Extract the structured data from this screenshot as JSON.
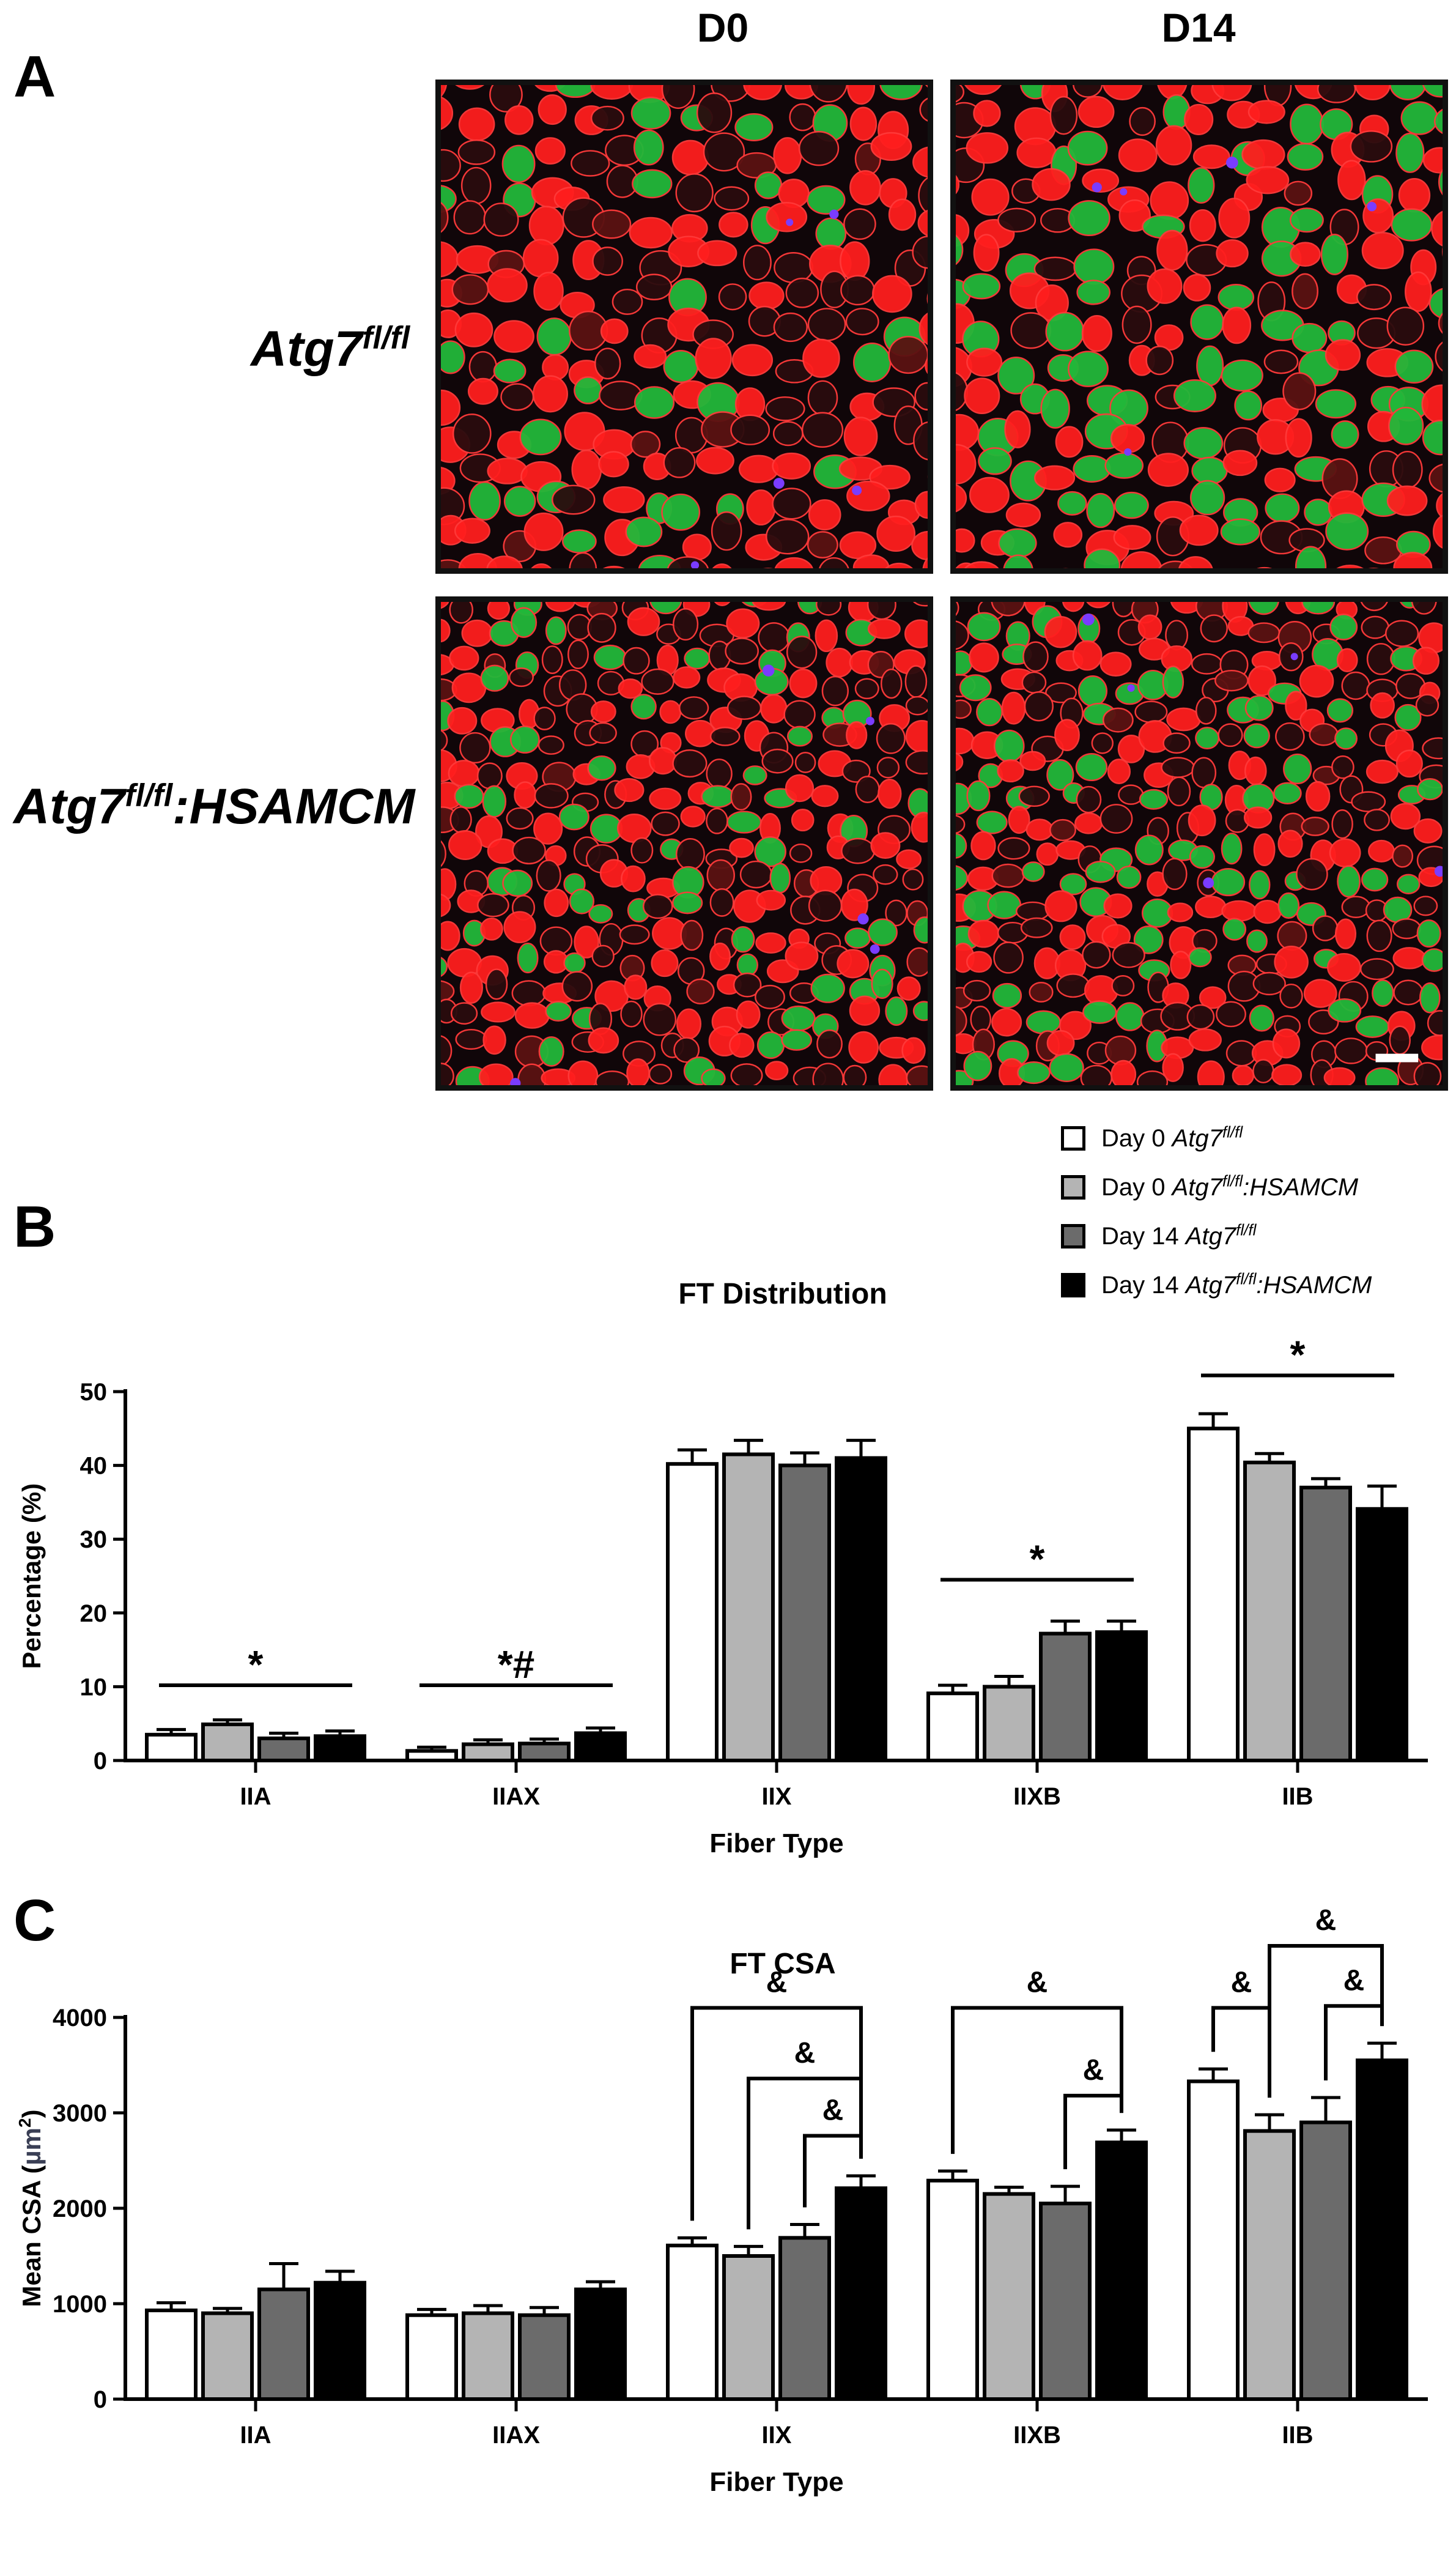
{
  "panel_a": {
    "letter": "A",
    "columns": [
      "D0",
      "D14"
    ],
    "rows": [
      {
        "base": "Atg7",
        "sup": "fl/fl",
        "suffix": ""
      },
      {
        "base": "Atg7",
        "sup": "fl/fl",
        "suffix": ":HSAMCM"
      }
    ],
    "images": [
      {
        "name": "micrograph-d0-atg7flfl",
        "green_fraction": 0.18,
        "red_fraction": 0.45
      },
      {
        "name": "micrograph-d14-atg7flfl",
        "green_fraction": 0.3,
        "red_fraction": 0.5
      },
      {
        "name": "micrograph-d0-hsamcm",
        "green_fraction": 0.25,
        "red_fraction": 0.35
      },
      {
        "name": "micrograph-d14-hsamcm",
        "green_fraction": 0.28,
        "red_fraction": 0.35
      }
    ],
    "colors": {
      "red": "#ff1e1e",
      "green": "#22b83a",
      "membrane": "#ff3a3a",
      "background": "#100609",
      "nuclei": "#7a3cff"
    }
  },
  "legend": [
    {
      "name": "Day 0 Atg7fl/fl",
      "day": "Day 0",
      "base": "Atg7",
      "sup": "fl/fl",
      "suffix": "",
      "color": "#ffffff"
    },
    {
      "name": "Day 0 Atg7fl/fl:HSAMCM",
      "day": "Day 0",
      "base": "Atg7",
      "sup": "fl/fl",
      "suffix": ":HSAMCM",
      "color": "#b4b4b4"
    },
    {
      "name": "Day 14 Atg7fl/fl",
      "day": "Day 14",
      "base": "Atg7",
      "sup": "fl/fl",
      "suffix": "",
      "color": "#6b6b6b"
    },
    {
      "name": "Day 14 Atg7fl/fl:HSAMCM",
      "day": "Day 14",
      "base": "Atg7",
      "sup": "fl/fl",
      "suffix": ":HSAMCM",
      "color": "#000000"
    }
  ],
  "chart_data": [
    {
      "type": "bar",
      "panel_letter": "B",
      "title": "FT Distribution",
      "xlabel": "Fiber Type",
      "ylabel": "Percentage (%)",
      "ylim": [
        0,
        50
      ],
      "yticks": [
        0,
        10,
        20,
        30,
        40,
        50
      ],
      "categories": [
        "IIA",
        "IIAX",
        "IIX",
        "IIXB",
        "IIB"
      ],
      "series": [
        {
          "name": "Day 0 Atg7fl/fl",
          "color": "#ffffff",
          "values": [
            3.5,
            1.3,
            40.2,
            9.1,
            45.0
          ],
          "errors": [
            0.7,
            0.5,
            1.9,
            1.1,
            2.0
          ]
        },
        {
          "name": "Day 0 Atg7fl/fl:HSAMCM",
          "color": "#b4b4b4",
          "values": [
            4.9,
            2.2,
            41.5,
            10.0,
            40.4
          ],
          "errors": [
            0.6,
            0.6,
            1.9,
            1.4,
            1.2
          ]
        },
        {
          "name": "Day 14 Atg7fl/fl",
          "color": "#6b6b6b",
          "values": [
            3.0,
            2.3,
            40.0,
            17.2,
            37.0
          ],
          "errors": [
            0.7,
            0.6,
            1.7,
            1.7,
            1.2
          ]
        },
        {
          "name": "Day 14 Atg7fl/fl:HSAMCM",
          "color": "#000000",
          "values": [
            3.3,
            3.7,
            41.0,
            17.4,
            34.1
          ],
          "errors": [
            0.7,
            0.7,
            2.4,
            1.5,
            3.1
          ]
        }
      ],
      "annotations": [
        {
          "category": "IIA",
          "text": "*",
          "level": 10.2
        },
        {
          "category": "IIAX",
          "text": "*#",
          "level": 10.2
        },
        {
          "category": "IIXB",
          "text": "*",
          "level": 24.5
        },
        {
          "category": "IIB",
          "text": "*",
          "level": 52.2
        }
      ]
    },
    {
      "type": "bar",
      "panel_letter": "C",
      "title": "FT CSA",
      "xlabel": "Fiber Type",
      "ylabel_prefix": "Mean CSA (",
      "ylabel_unit": "µm",
      "ylabel_sup": "2",
      "ylabel_suffix": ")",
      "ylim": [
        0,
        4000
      ],
      "yticks": [
        0,
        1000,
        2000,
        3000,
        4000
      ],
      "categories": [
        "IIA",
        "IIAX",
        "IIX",
        "IIXB",
        "IIB"
      ],
      "series": [
        {
          "name": "Day 0 Atg7fl/fl",
          "color": "#ffffff",
          "values": [
            930,
            880,
            1610,
            2290,
            3330
          ],
          "errors": [
            80,
            60,
            80,
            100,
            130
          ]
        },
        {
          "name": "Day 0 Atg7fl/fl:HSAMCM",
          "color": "#b4b4b4",
          "values": [
            900,
            900,
            1500,
            2150,
            2810
          ],
          "errors": [
            50,
            80,
            100,
            70,
            170
          ]
        },
        {
          "name": "Day 14 Atg7fl/fl",
          "color": "#6b6b6b",
          "values": [
            1150,
            880,
            1690,
            2050,
            2900
          ],
          "errors": [
            270,
            80,
            140,
            180,
            260
          ]
        },
        {
          "name": "Day 14 Atg7fl/fl:HSAMCM",
          "color": "#000000",
          "values": [
            1220,
            1150,
            2210,
            2690,
            3550
          ],
          "errors": [
            120,
            80,
            130,
            130,
            180
          ]
        }
      ],
      "brackets": [
        {
          "category": "IIX",
          "from_series": 0,
          "to_series": 3,
          "level": 4100,
          "text": "&"
        },
        {
          "category": "IIX",
          "from_series": 1,
          "to_series": 3,
          "level": 3360,
          "text": "&"
        },
        {
          "category": "IIX",
          "from_series": 2,
          "to_series": 3,
          "level": 2760,
          "text": "&"
        },
        {
          "category": "IIXB",
          "from_series": 0,
          "to_series": 3,
          "level": 4100,
          "text": "&"
        },
        {
          "category": "IIXB",
          "from_series": 2,
          "to_series": 3,
          "level": 3180,
          "text": "&"
        },
        {
          "category": "IIB",
          "from_series": 0,
          "to_series": 1,
          "level": 4100,
          "text": "&"
        },
        {
          "category": "IIB",
          "from_series": 1,
          "to_series": 3,
          "level": 4750,
          "text": "&"
        },
        {
          "category": "IIB",
          "from_series": 2,
          "to_series": 3,
          "level": 4120,
          "text": "&"
        }
      ]
    }
  ]
}
